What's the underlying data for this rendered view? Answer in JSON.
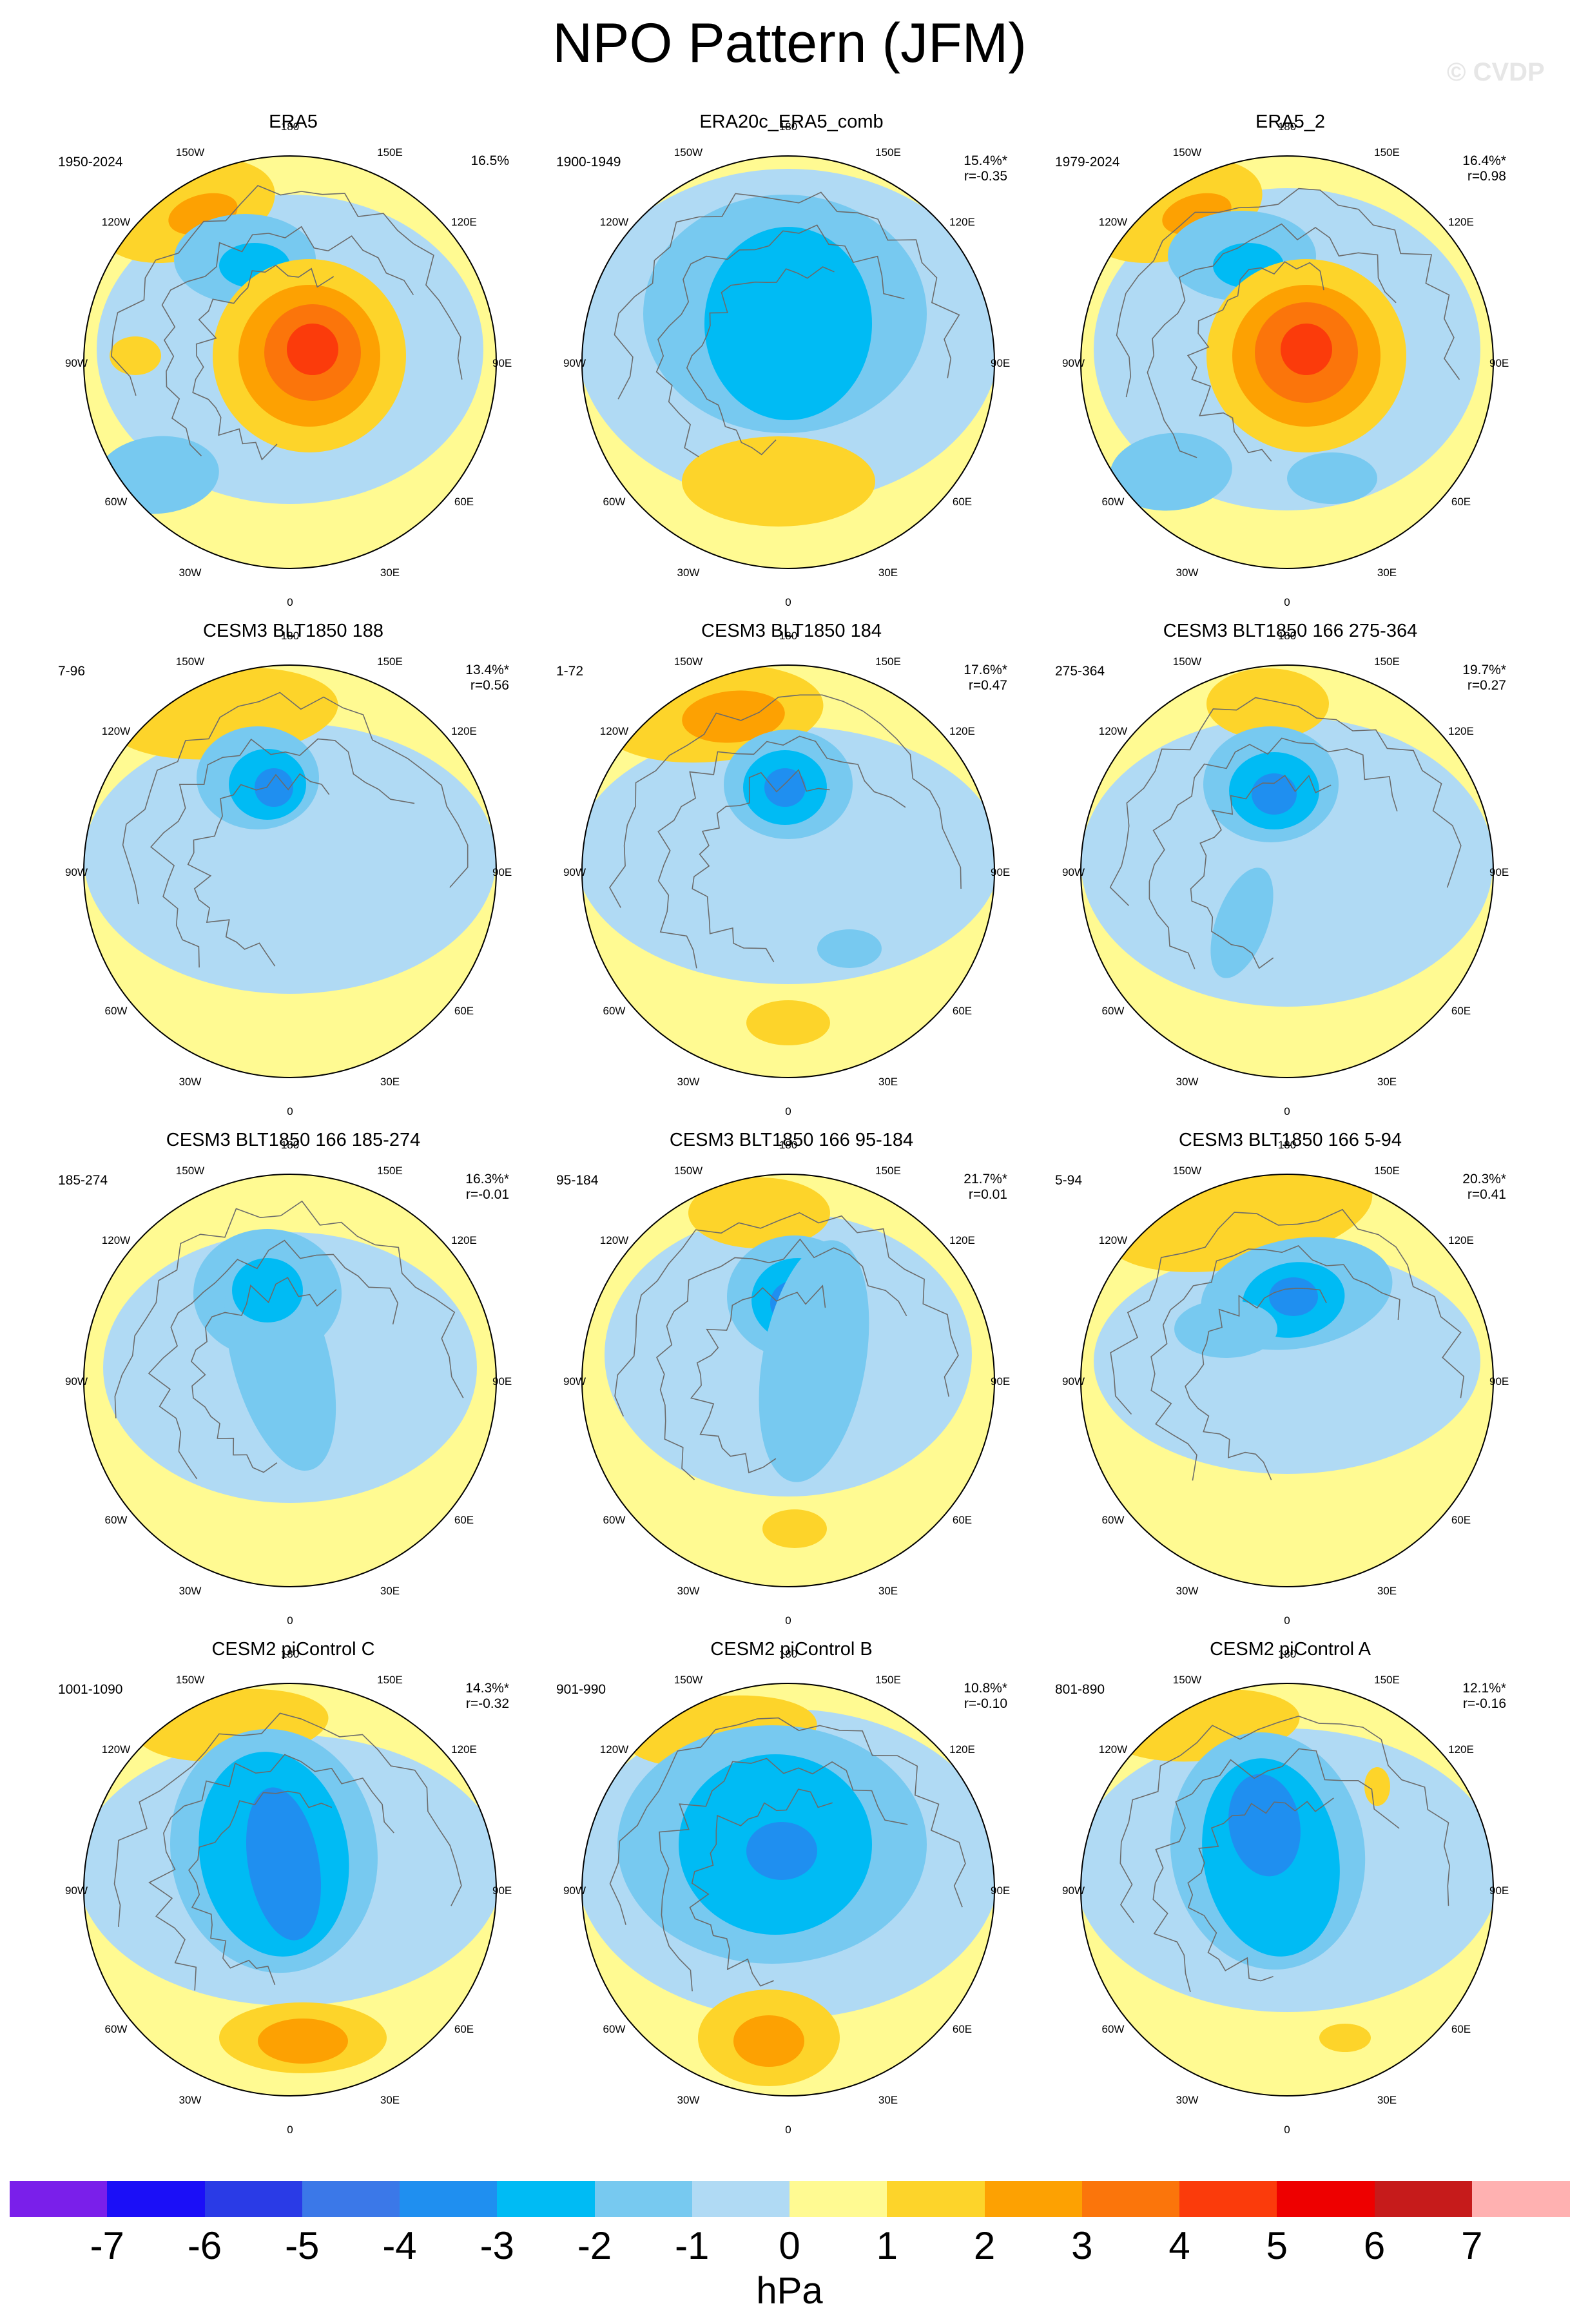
{
  "title": "NPO Pattern (JFM)",
  "watermark": "© CVDP",
  "units": "hPa",
  "colorbar": {
    "ticks": [
      "-7",
      "-6",
      "-5",
      "-4",
      "-3",
      "-2",
      "-1",
      "0",
      "1",
      "2",
      "3",
      "4",
      "5",
      "6",
      "7"
    ],
    "colors": [
      "#7a1fea",
      "#1b0ff7",
      "#2a3be6",
      "#3b78e8",
      "#1f8ff0",
      "#00bbf4",
      "#77c9f0",
      "#b0daf4",
      "#fffa92",
      "#fdd42a",
      "#fda102",
      "#fb750b",
      "#fb3b0b",
      "#ee0000",
      "#c61b1b",
      "#ffb1b1"
    ]
  },
  "lon_labels": {
    "n": "180",
    "s": "0",
    "nw": "150W",
    "ne": "150E",
    "wnw": "120W",
    "ene": "120E",
    "w": "90W",
    "e": "90E",
    "wsw": "60W",
    "ese": "60E",
    "sw": "30W",
    "se": "30E"
  },
  "panels": [
    {
      "name": "ERA5",
      "years": "1950-2024",
      "pct": "16.5%",
      "r": ""
    },
    {
      "name": "ERA20c_ERA5_comb",
      "years": "1900-1949",
      "pct": "15.4%*",
      "r": "r=-0.35"
    },
    {
      "name": "ERA5_2",
      "years": "1979-2024",
      "pct": "16.4%*",
      "r": "r=0.98"
    },
    {
      "name": "CESM3 BLT1850 188",
      "years": "7-96",
      "pct": "13.4%*",
      "r": "r=0.56"
    },
    {
      "name": "CESM3 BLT1850 184",
      "years": "1-72",
      "pct": "17.6%*",
      "r": "r=0.47"
    },
    {
      "name": "CESM3 BLT1850 166 275-364",
      "years": "275-364",
      "pct": "19.7%*",
      "r": "r=0.27"
    },
    {
      "name": "CESM3 BLT1850 166 185-274",
      "years": "185-274",
      "pct": "16.3%*",
      "r": "r=-0.01"
    },
    {
      "name": "CESM3 BLT1850 166 95-184",
      "years": "95-184",
      "pct": "21.7%*",
      "r": "r=0.01"
    },
    {
      "name": "CESM3 BLT1850 166 5-94",
      "years": "5-94",
      "pct": "20.3%*",
      "r": "r=0.41"
    },
    {
      "name": "CESM2 piControl C",
      "years": "1001-1090",
      "pct": "14.3%*",
      "r": "r=-0.32"
    },
    {
      "name": "CESM2 piControl B",
      "years": "901-990",
      "pct": "10.8%*",
      "r": "r=-0.10"
    },
    {
      "name": "CESM2 piControl A",
      "years": "801-890",
      "pct": "12.1%*",
      "r": "r=-0.16"
    }
  ]
}
